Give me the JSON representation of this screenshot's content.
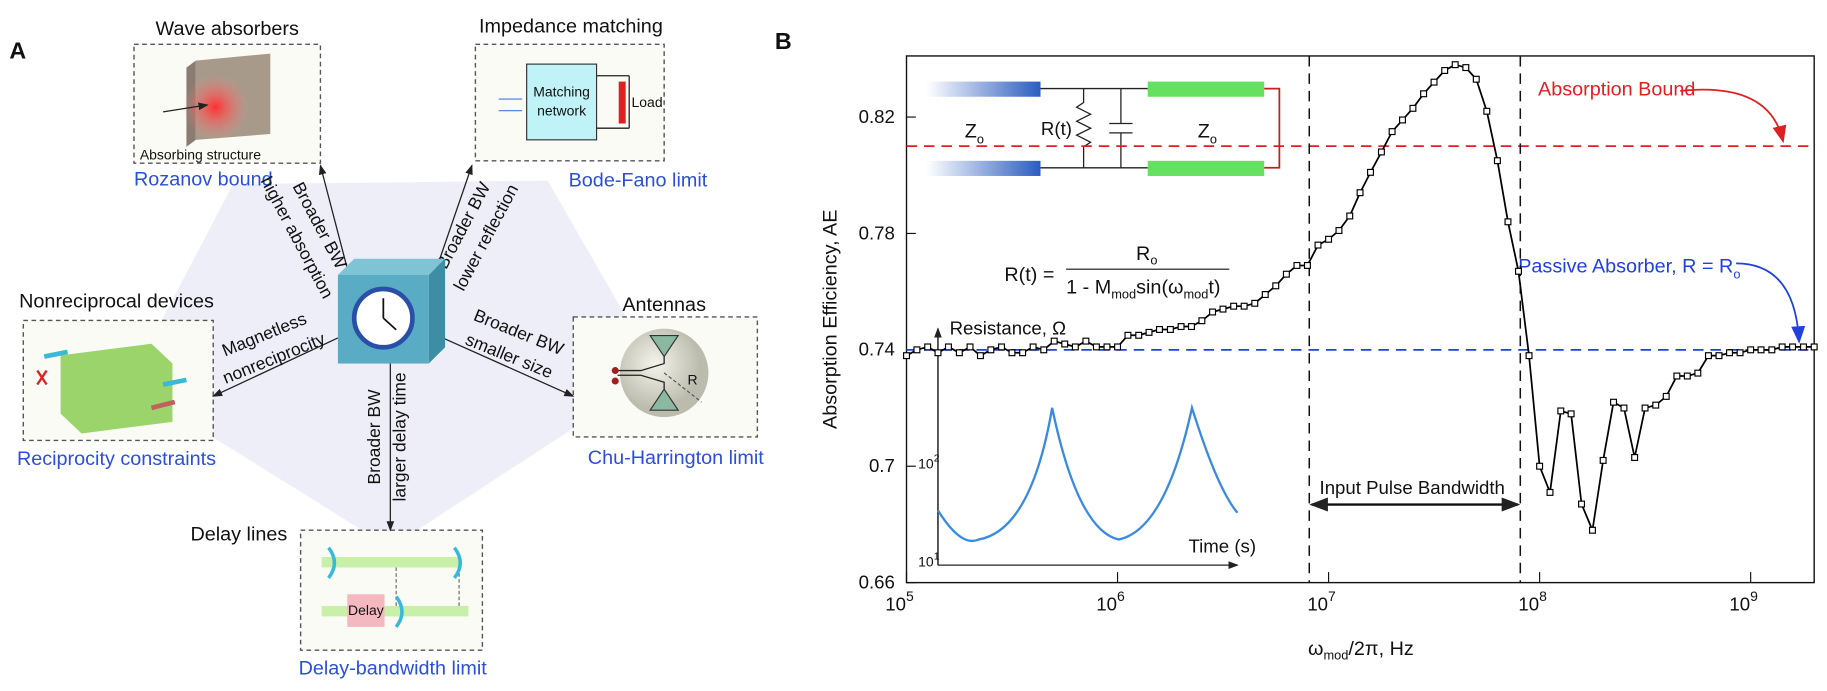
{
  "panel_a": {
    "label": "A",
    "nodes": [
      {
        "title": "Wave absorbers",
        "limit": "Rozanov bound",
        "inner": [
          "Absorbing structure"
        ]
      },
      {
        "title": "Impedance matching",
        "limit": "Bode-Fano limit",
        "inner": [
          "Matching",
          "network",
          "Load"
        ]
      },
      {
        "title": "Nonreciprocal devices",
        "limit": "Reciprocity constraints"
      },
      {
        "title": "Antennas",
        "limit": "Chu-Harrington limit",
        "inner": [
          "R"
        ]
      },
      {
        "title": "Delay lines",
        "limit": "Delay-bandwidth limit",
        "inner": [
          "Delay"
        ]
      }
    ],
    "arrows": [
      [
        "Broader BW",
        "higher absorption"
      ],
      [
        "Broader BW",
        "lower reflection"
      ],
      [
        "Magnetless",
        "nonreciprocity"
      ],
      [
        "Broader BW",
        "smaller size"
      ],
      [
        "Broader BW",
        "larger delay time"
      ]
    ]
  },
  "chart_data": {
    "type": "line",
    "label": "B",
    "ylabel": "Absorption Efficiency, AE",
    "xlabel": {
      "text": "ω",
      "sub": "mod",
      "rest": "/2π, Hz"
    },
    "xlog": true,
    "xlim": [
      100000,
      2000000000
    ],
    "ylim": [
      0.66,
      0.841
    ],
    "xticks": [
      {
        "value": 100000,
        "label": "10",
        "sup": "5"
      },
      {
        "value": 1000000,
        "label": "10",
        "sup": "6"
      },
      {
        "value": 10000000,
        "label": "10",
        "sup": "7"
      },
      {
        "value": 100000000,
        "label": "10",
        "sup": "8"
      },
      {
        "value": 1000000000,
        "label": "10",
        "sup": "9"
      }
    ],
    "yticks": [
      0.66,
      0.7,
      0.74,
      0.78,
      0.82
    ],
    "x": [
      100000,
      112000,
      126000,
      141000,
      158000,
      178000,
      200000,
      224000,
      251000,
      282000,
      316000,
      355000,
      398000,
      447000,
      501000,
      562000,
      631000,
      708000,
      794000,
      891000,
      1000000,
      1120000,
      1260000,
      1410000,
      1580000,
      1780000,
      2000000,
      2240000,
      2510000,
      2820000,
      3160000,
      3550000,
      3980000,
      4470000,
      5010000,
      5620000,
      6310000,
      7080000,
      7940000,
      8910000,
      10000000,
      11200000,
      12600000,
      14100000,
      15800000,
      17800000,
      20000000,
      22400000,
      25100000,
      28200000,
      31600000,
      35500000,
      39800000,
      44700000,
      50100000,
      56200000,
      63100000,
      70800000,
      79400000,
      89100000,
      100000000,
      112000000,
      126000000,
      141000000,
      158000000,
      178000000,
      200000000,
      224000000,
      251000000,
      282000000,
      316000000,
      355000000,
      398000000,
      447000000,
      501000000,
      562000000,
      631000000,
      708000000,
      794000000,
      891000000,
      1000000000,
      1120000000,
      1260000000,
      1410000000,
      1580000000,
      1780000000,
      2000000000
    ],
    "series": [
      {
        "color": "#000000",
        "values": [
          0.738,
          0.74,
          0.741,
          0.739,
          0.741,
          0.739,
          0.741,
          0.738,
          0.74,
          0.741,
          0.739,
          0.739,
          0.741,
          0.74,
          0.743,
          0.742,
          0.741,
          0.743,
          0.741,
          0.741,
          0.741,
          0.745,
          0.745,
          0.746,
          0.747,
          0.747,
          0.748,
          0.748,
          0.75,
          0.753,
          0.754,
          0.755,
          0.755,
          0.756,
          0.759,
          0.762,
          0.766,
          0.769,
          0.769,
          0.776,
          0.778,
          0.781,
          0.786,
          0.794,
          0.801,
          0.808,
          0.815,
          0.819,
          0.823,
          0.828,
          0.832,
          0.836,
          0.838,
          0.837,
          0.833,
          0.822,
          0.805,
          0.784,
          0.767,
          0.738,
          0.7,
          0.691,
          0.719,
          0.718,
          0.687,
          0.678,
          0.702,
          0.722,
          0.72,
          0.703,
          0.72,
          0.721,
          0.724,
          0.731,
          0.731,
          0.732,
          0.738,
          0.738,
          0.739,
          0.739,
          0.74,
          0.74,
          0.74,
          0.741,
          0.741,
          0.741,
          0.741
        ]
      }
    ],
    "hlines": [
      {
        "value": 0.81,
        "color": "#e02020",
        "label": "Absorption Bound"
      },
      {
        "value": 0.74,
        "color": "#2040e0",
        "label": "Passive Absorber, R = R",
        "sub": "o"
      }
    ],
    "vlines": [
      {
        "value": 8100000
      },
      {
        "value": 81000000
      }
    ],
    "span_label": "Input Pulse Bandwidth",
    "inset": {
      "z": "Z",
      "z_sub": "o",
      "r": "R(t)",
      "formula": {
        "lhs": "R(t) =",
        "num": "R",
        "num_sub": "o",
        "den1": "1 - M",
        "den_sub1": "mod",
        "den2": "sin(ω",
        "den_sub2": "mod",
        "den3": "t)"
      },
      "ylabel": "Resistance, Ω",
      "xlabel": "Time (s)",
      "ticks": [
        {
          "label": "10",
          "sup": "2"
        },
        {
          "label": "10",
          "sup": "1"
        }
      ]
    }
  }
}
